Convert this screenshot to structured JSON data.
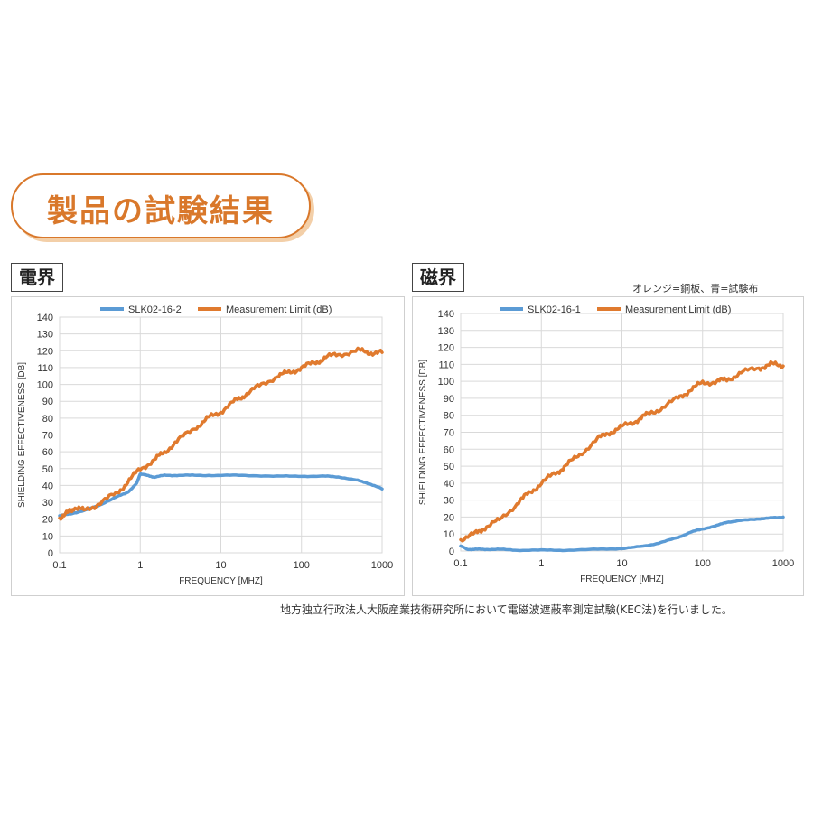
{
  "banner": {
    "title": "製品の試験結果"
  },
  "notes": {
    "color_note": "オレンジ=銅板、青=試験布",
    "footnote": "地方独立行政法人大阪産業技術研究所において電磁波遮蔽率測定試験(KEC法)を行いました。"
  },
  "colors": {
    "blue": "#5b9bd5",
    "orange": "#e07a2e",
    "accent": "#d9782b"
  },
  "chart_data": [
    {
      "type": "line",
      "panel_label": "電界",
      "xlabel": "FREQUENCY [MHZ]",
      "ylabel": "SHIELDING EFFECTIVENESS [DB]",
      "xscale": "log",
      "xlim": [
        0.1,
        1000
      ],
      "ylim": [
        0,
        140
      ],
      "xticks": [
        "0.1",
        "1",
        "10",
        "100",
        "1000"
      ],
      "yticks": [
        "0",
        "10",
        "20",
        "30",
        "40",
        "50",
        "60",
        "70",
        "80",
        "90",
        "100",
        "110",
        "120",
        "130",
        "140"
      ],
      "grid": true,
      "legend": "top",
      "series": [
        {
          "name": "SLK02-16-2",
          "color": "#5b9bd5",
          "x": [
            0.1,
            0.13,
            0.2,
            0.3,
            0.5,
            0.7,
            0.9,
            1.0,
            1.2,
            1.5,
            2,
            3,
            5,
            10,
            20,
            50,
            100,
            200,
            300,
            500,
            700,
            1000
          ],
          "y": [
            22,
            23,
            25,
            28,
            33,
            36,
            41,
            47,
            46,
            45,
            46,
            46,
            46,
            46,
            46,
            45.5,
            45.5,
            45.5,
            45,
            43,
            41,
            38
          ]
        },
        {
          "name": "Measurement Limit (dB)",
          "color": "#e07a2e",
          "x": [
            0.1,
            0.13,
            0.15,
            0.2,
            0.3,
            0.5,
            0.7,
            1.0,
            1.5,
            2,
            3,
            5,
            7,
            10,
            15,
            20,
            30,
            50,
            70,
            100,
            150,
            200,
            300,
            500,
            700,
            1000
          ],
          "y": [
            21,
            24,
            27,
            25,
            29,
            35,
            42,
            50,
            55,
            60,
            67,
            75,
            80,
            84,
            90,
            94,
            99,
            105,
            107,
            110,
            113,
            116,
            118,
            120,
            119,
            119
          ]
        }
      ]
    },
    {
      "type": "line",
      "panel_label": "磁界",
      "xlabel": "FREQUENCY [MHZ]",
      "ylabel": "SHIELDING EFFECTIVENESS [DB]",
      "xscale": "log",
      "xlim": [
        0.1,
        1000
      ],
      "ylim": [
        0,
        140
      ],
      "xticks": [
        "0.1",
        "1",
        "10",
        "100",
        "1000"
      ],
      "yticks": [
        "0",
        "10",
        "20",
        "30",
        "40",
        "50",
        "60",
        "70",
        "80",
        "90",
        "100",
        "110",
        "120",
        "130",
        "140"
      ],
      "grid": true,
      "legend": "top",
      "series": [
        {
          "name": "SLK02-16-1",
          "color": "#5b9bd5",
          "x": [
            0.1,
            0.12,
            0.15,
            0.2,
            0.3,
            0.5,
            1,
            2,
            5,
            10,
            20,
            30,
            50,
            70,
            100,
            150,
            200,
            300,
            500,
            700,
            1000
          ],
          "y": [
            3,
            1,
            1,
            1,
            1,
            0.5,
            0.5,
            0.5,
            1,
            1.5,
            3,
            5,
            8,
            11,
            13,
            15,
            17,
            18,
            19,
            19.5,
            20
          ]
        },
        {
          "name": "Measurement Limit (dB)",
          "color": "#e07a2e",
          "x": [
            0.1,
            0.15,
            0.2,
            0.3,
            0.5,
            0.7,
            1.0,
            1.5,
            2,
            3,
            5,
            7,
            10,
            15,
            20,
            30,
            50,
            70,
            100,
            150,
            200,
            300,
            500,
            700,
            1000
          ],
          "y": [
            7,
            10,
            14,
            18,
            28,
            34,
            40,
            46,
            50,
            57,
            66,
            70,
            73,
            77,
            80,
            84,
            90,
            95,
            99,
            100,
            101,
            105,
            108,
            110,
            109
          ]
        }
      ]
    }
  ]
}
